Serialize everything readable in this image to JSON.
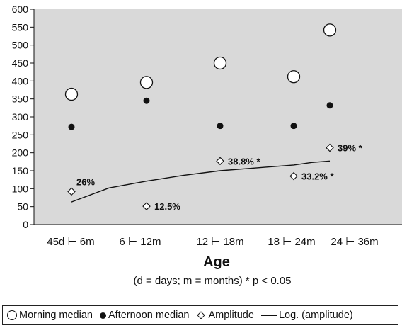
{
  "chart_data": {
    "type": "scatter",
    "categories": [
      "45d ⊢ 6m",
      "6 ⊢ 12m",
      "12 ⊢ 18m",
      "18 ⊢ 24m",
      "24 ⊢ 36m"
    ],
    "ylim": [
      0,
      600
    ],
    "yticks": [
      0,
      50,
      100,
      150,
      200,
      250,
      300,
      350,
      400,
      450,
      500,
      550,
      600
    ],
    "xlabel": "Age",
    "xlabel_note": "(d = days; m = months)   * p < 0.05",
    "grid": false,
    "background": "#d9d9d9",
    "legend_position": "bottom",
    "series": [
      {
        "name": "Morning median",
        "marker": "open-circle",
        "values": [
          363,
          396,
          450,
          412,
          542
        ]
      },
      {
        "name": "Afternoon median",
        "marker": "filled-circle",
        "values": [
          272,
          345,
          275,
          275,
          332
        ]
      },
      {
        "name": "Amplitude",
        "marker": "open-diamond",
        "values": [
          92,
          51,
          177,
          135,
          214
        ],
        "labels": [
          "26%",
          "12.5%",
          "38.8% *",
          "33.2% *",
          "39% *"
        ]
      },
      {
        "name": "Log. (amplitude)",
        "marker": "line",
        "x": [
          0,
          0.5,
          1,
          1.5,
          2,
          2.5,
          3,
          3.5,
          4,
          4.5
        ],
        "values": [
          63,
          102,
          121,
          137,
          150,
          158,
          166,
          173,
          177,
          177
        ]
      }
    ]
  }
}
